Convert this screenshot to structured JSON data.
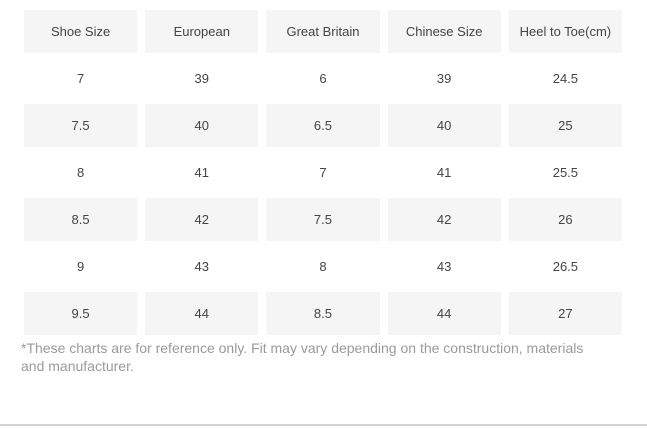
{
  "theme": {
    "page-bg": "#ffffff",
    "stripe-bg": "#f5f5f5",
    "text-color": "#444444",
    "footnote-color": "#9a9a9a",
    "divider-color": "#d4d4d4"
  },
  "table": {
    "columns": [
      "Shoe Size",
      "European",
      "Great Britain",
      "Chinese Size",
      "Heel to Toe(cm)"
    ],
    "rows": [
      [
        "7",
        "39",
        "6",
        "39",
        "24.5"
      ],
      [
        "7.5",
        "40",
        "6.5",
        "40",
        "25"
      ],
      [
        "8",
        "41",
        "7",
        "41",
        "25.5"
      ],
      [
        "8.5",
        "42",
        "7.5",
        "42",
        "26"
      ],
      [
        "9",
        "43",
        "8",
        "43",
        "26.5"
      ],
      [
        "9.5",
        "44",
        "8.5",
        "44",
        "27"
      ]
    ]
  },
  "footnote": {
    "text": "*These charts are for reference only. Fit may vary depending on the construction, materials and manufacturer."
  }
}
